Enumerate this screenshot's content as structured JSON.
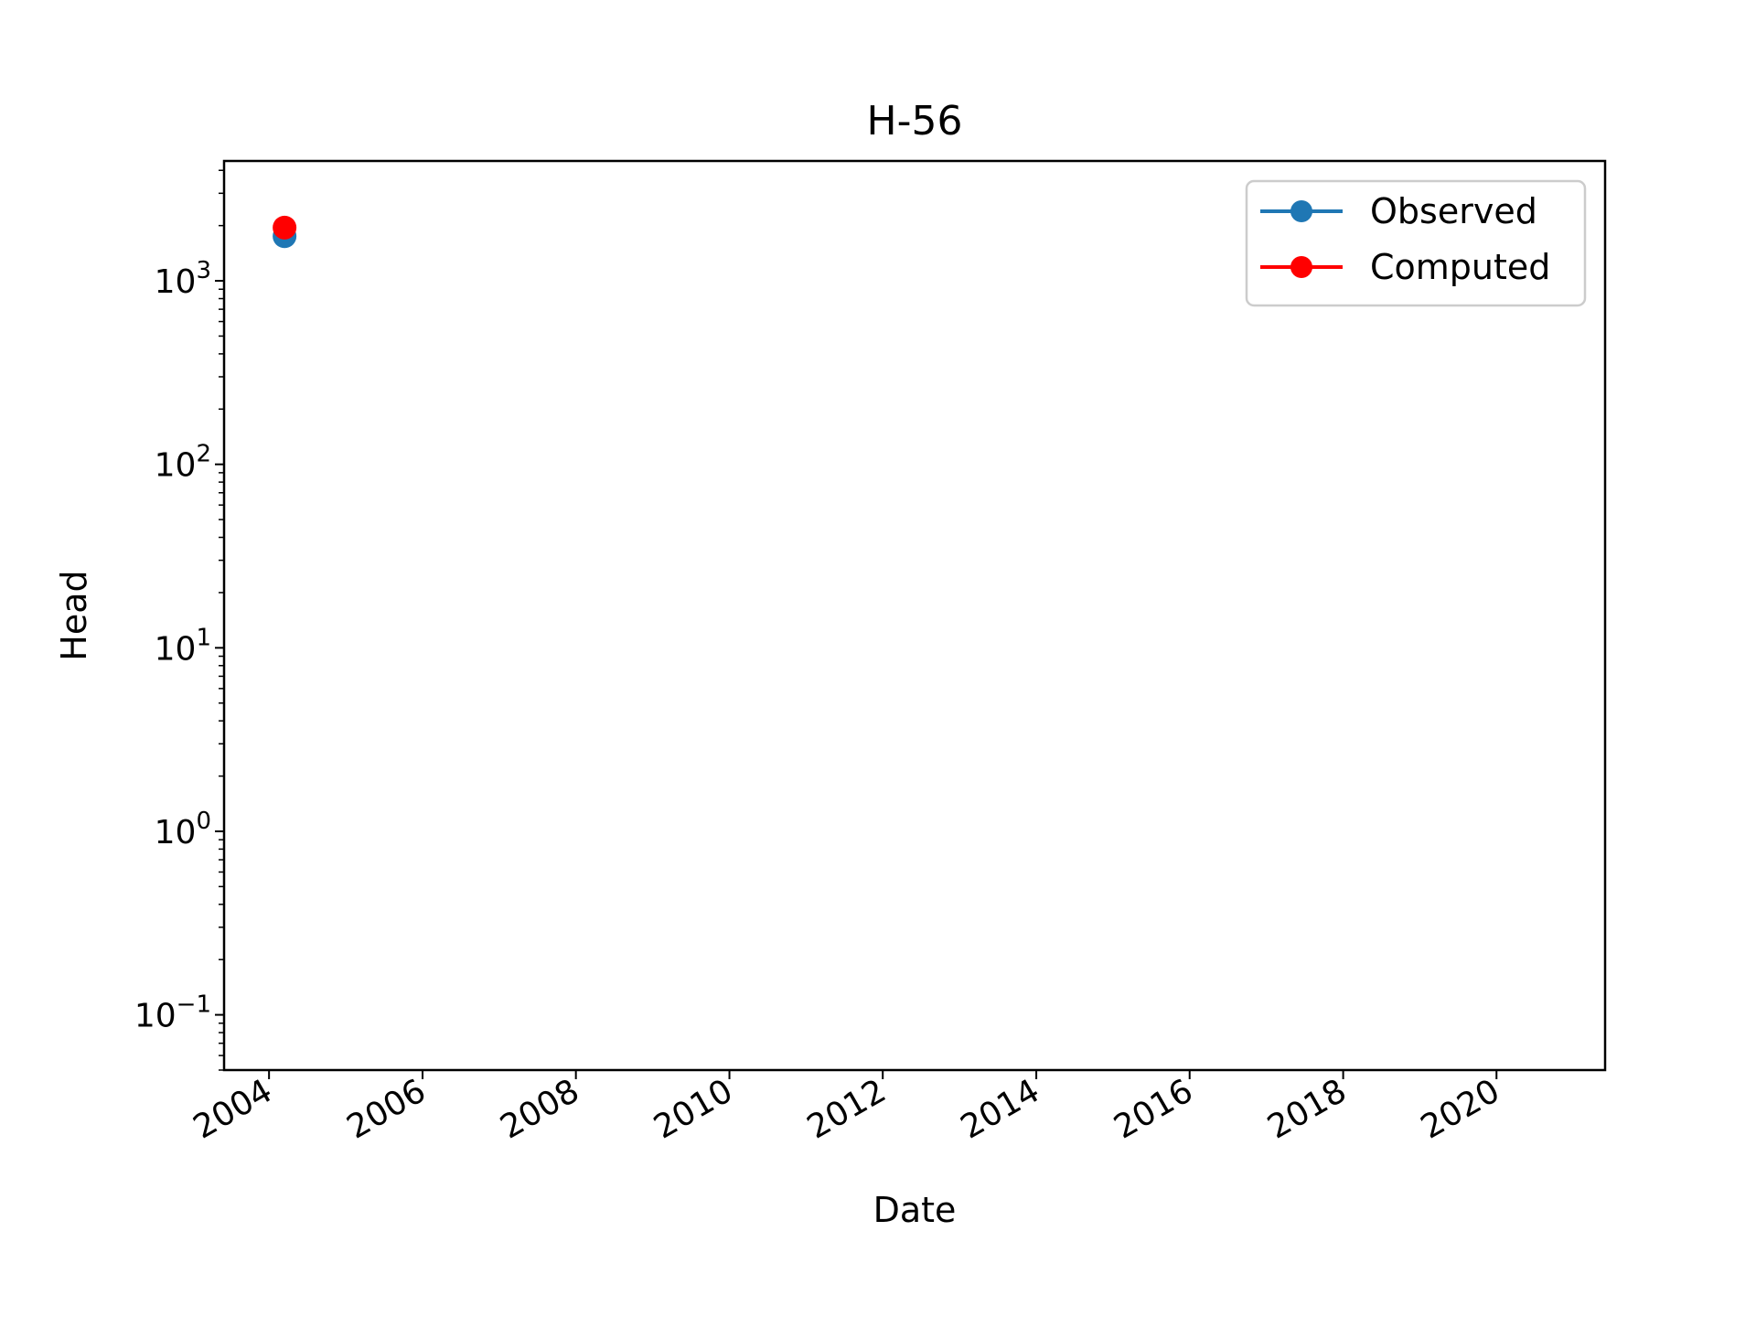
{
  "chart_data": {
    "type": "line",
    "title": "H-56",
    "xlabel": "Date",
    "ylabel": "Head",
    "x_scale": "date",
    "y_scale": "log",
    "xlim": [
      "2003-06-01",
      "2021-06-01"
    ],
    "ylim": [
      0.05,
      4500
    ],
    "x_ticks": [
      "2004",
      "2006",
      "2008",
      "2010",
      "2012",
      "2014",
      "2016",
      "2018",
      "2020"
    ],
    "y_ticks": [
      {
        "value": 0.1,
        "base": "10",
        "exp": "−1"
      },
      {
        "value": 1,
        "base": "10",
        "exp": "0"
      },
      {
        "value": 10,
        "base": "10",
        "exp": "1"
      },
      {
        "value": 100,
        "base": "10",
        "exp": "2"
      },
      {
        "value": 1000,
        "base": "10",
        "exp": "3"
      }
    ],
    "grid": false,
    "legend_position": "upper right",
    "series": [
      {
        "name": "Observed",
        "color": "#1f77b4",
        "points": [
          {
            "x": "2004-03-15",
            "y": 1750
          }
        ]
      },
      {
        "name": "Computed",
        "color": "#ff0000",
        "points": [
          {
            "x": "2004-03-15",
            "y": 1950
          }
        ]
      }
    ]
  }
}
